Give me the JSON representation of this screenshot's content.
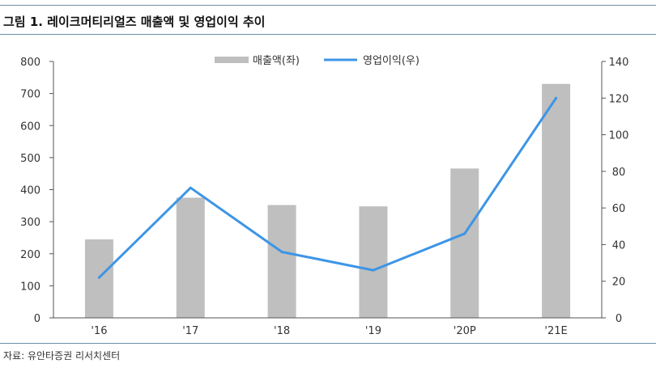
{
  "title": "그림 1. 레이크머티리얼즈 매출액 및 영업이익 추이",
  "source": "자료: 유안타증권 리서치센터",
  "chart_data": {
    "type": "bar",
    "categories": [
      "'16",
      "'17",
      "'18",
      "'19",
      "'20P",
      "'21E"
    ],
    "series": [
      {
        "name": "매출액(좌)",
        "type": "bar",
        "axis": "left",
        "color": "#bfbfbf",
        "values": [
          245,
          375,
          352,
          348,
          466,
          730
        ]
      },
      {
        "name": "영업이익(우)",
        "type": "line",
        "axis": "right",
        "color": "#3d95e6",
        "values": [
          22,
          71,
          36,
          26,
          46,
          120
        ]
      }
    ],
    "y_left": {
      "min": 0,
      "max": 800,
      "ticks": [
        0,
        100,
        200,
        300,
        400,
        500,
        600,
        700,
        800
      ]
    },
    "y_right": {
      "min": 0,
      "max": 140,
      "ticks": [
        0,
        20,
        40,
        60,
        80,
        100,
        120,
        140
      ]
    },
    "legend_position": "top-center",
    "grid": false
  }
}
